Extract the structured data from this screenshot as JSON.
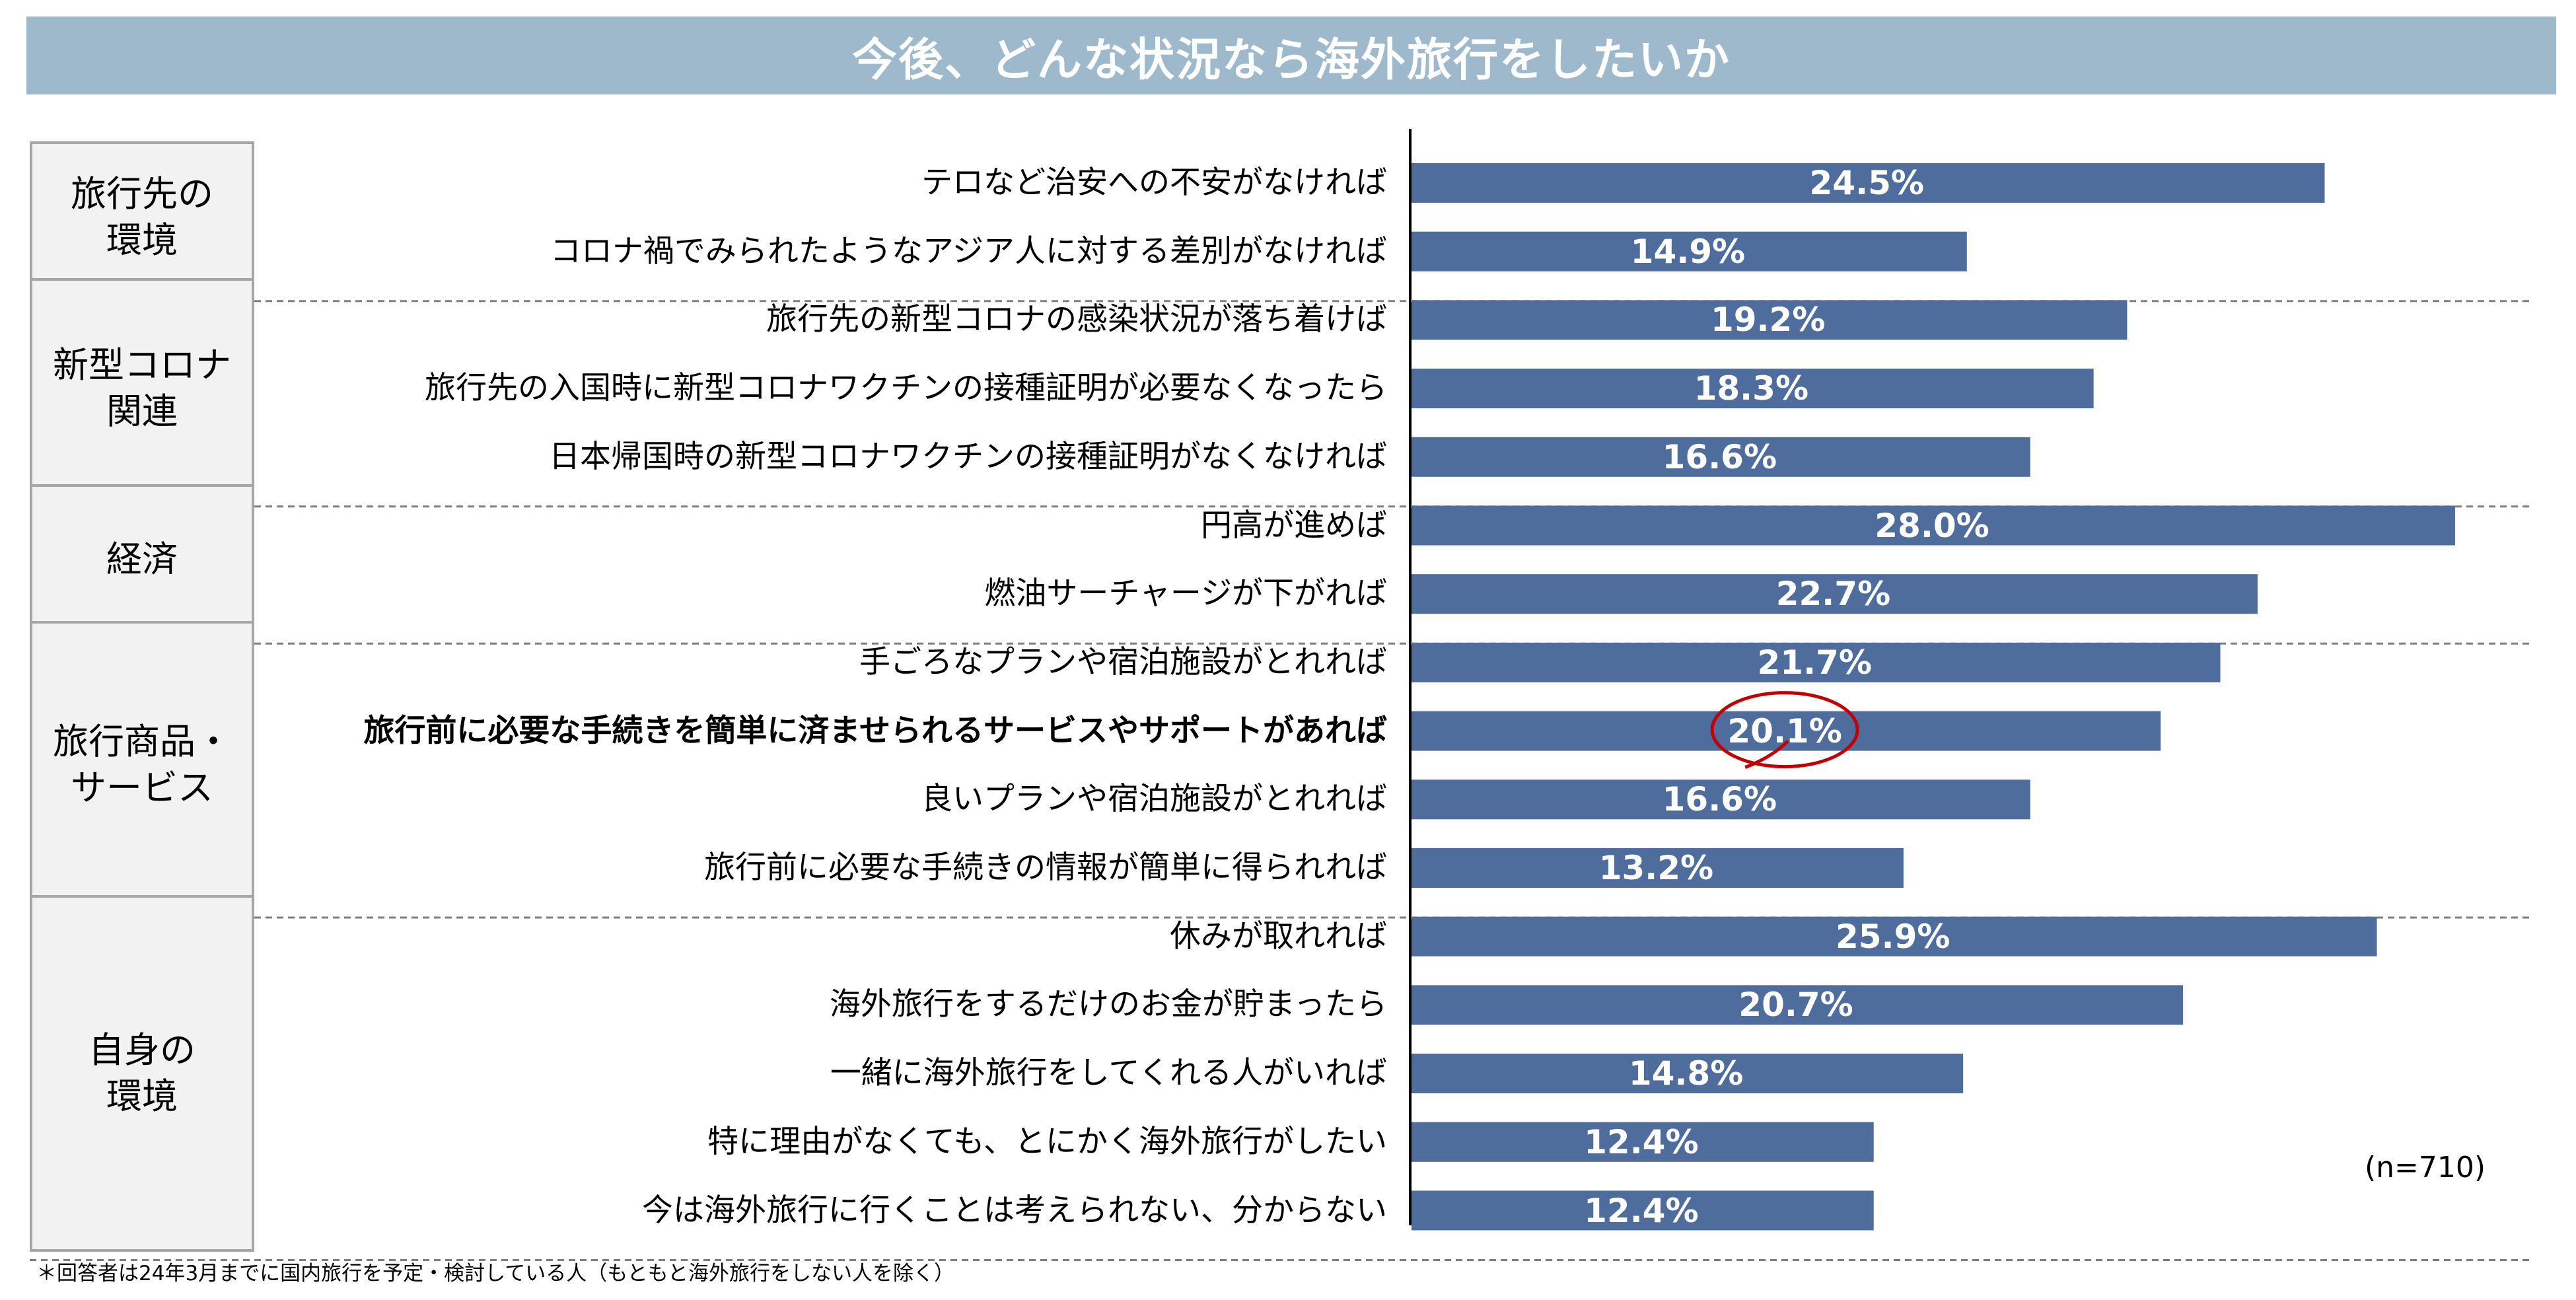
{
  "title": "今後、どんな状況なら海外旅行をしたいか",
  "sample_note": "(n=710)",
  "footnote": "＊回答者は24年3月までに国内旅行を予定・検討している人（もともと海外旅行をしない人を除く）",
  "colors": {
    "bar": "#4f6d9c",
    "title_bg": "#9db9cb",
    "highlight": "#c00000"
  },
  "highlight_index": 8,
  "chart_data": {
    "type": "bar",
    "orientation": "horizontal",
    "title": "今後、どんな状況なら海外旅行をしたいか",
    "xlim": [
      0,
      30
    ],
    "unit": "%",
    "groups": [
      {
        "label": "旅行先の\n環境",
        "start": 0,
        "count": 2
      },
      {
        "label": "新型コロナ\n関連",
        "start": 2,
        "count": 3
      },
      {
        "label": "経済",
        "start": 5,
        "count": 2
      },
      {
        "label": "旅行商品・\nサービス",
        "start": 7,
        "count": 4
      },
      {
        "label": "自身の\n環境",
        "start": 11,
        "count": 5
      }
    ],
    "categories": [
      "テロなど治安への不安がなければ",
      "コロナ禍でみられたようなアジア人に対する差別がなければ",
      "旅行先の新型コロナの感染状況が落ち着けば",
      "旅行先の入国時に新型コロナワクチンの接種証明が必要なくなったら",
      "日本帰国時の新型コロナワクチンの接種証明がなくなければ",
      "円高が進めば",
      "燃油サーチャージが下がれば",
      "手ごろなプランや宿泊施設がとれれば",
      "旅行前に必要な手続きを簡単に済ませられるサービスやサポートがあれば",
      "良いプランや宿泊施設がとれれば",
      "旅行前に必要な手続きの情報が簡単に得られれば",
      "休みが取れれば",
      "海外旅行をするだけのお金が貯まったら",
      "一緒に海外旅行をしてくれる人がいれば",
      "特に理由がなくても、とにかく海外旅行がしたい",
      "今は海外旅行に行くことは考えられない、分からない"
    ],
    "values": [
      24.5,
      14.9,
      19.2,
      18.3,
      16.6,
      28.0,
      22.7,
      21.7,
      20.1,
      16.6,
      13.2,
      25.9,
      20.7,
      14.8,
      12.4,
      12.4
    ],
    "value_labels": [
      "24.5%",
      "14.9%",
      "19.2%",
      "18.3%",
      "16.6%",
      "28.0%",
      "22.7%",
      "21.7%",
      "20.1%",
      "16.6%",
      "13.2%",
      "25.9%",
      "20.7%",
      "14.8%",
      "12.4%",
      "12.4%"
    ]
  }
}
